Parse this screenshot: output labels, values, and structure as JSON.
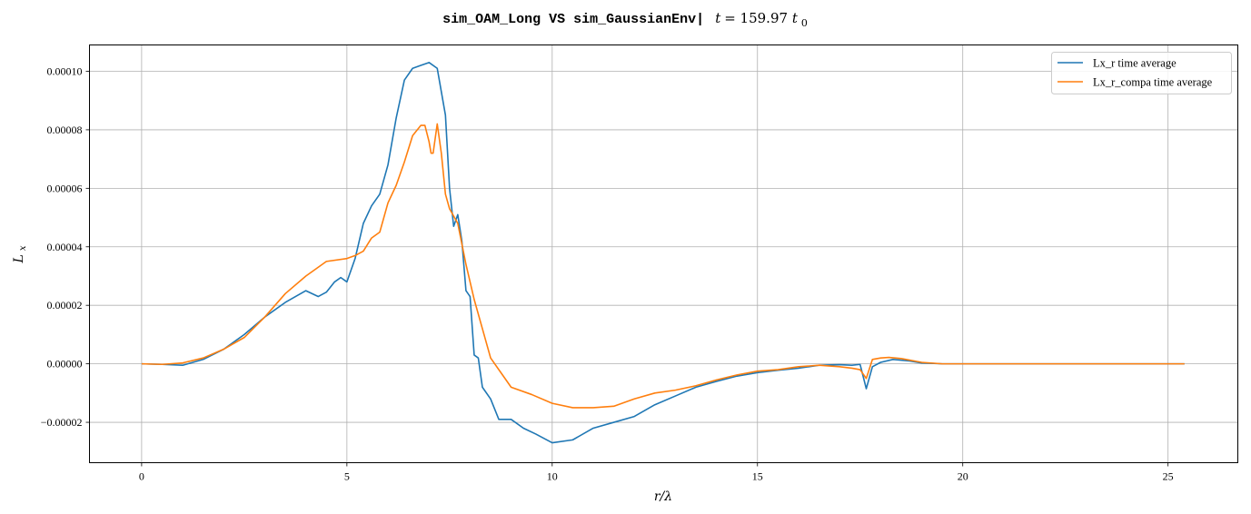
{
  "chart_data": {
    "type": "line",
    "title": {
      "code_part": "sim_OAM_Long VS sim_GaussianEnv|",
      "math_var": "t",
      "math_eq": " = 159.97 ",
      "math_unit": "t",
      "math_sub": "0"
    },
    "xlabel": "r/λ",
    "ylabel_main": "L",
    "ylabel_sub": "x",
    "xlim": [
      -1.27,
      26.7
    ],
    "ylim": [
      -3.38e-05,
      0.000109
    ],
    "xticks": [
      0,
      5,
      10,
      15,
      20,
      25
    ],
    "xtick_labels": [
      "0",
      "5",
      "10",
      "15",
      "20",
      "25"
    ],
    "yticks": [
      -2e-05,
      0,
      2e-05,
      4e-05,
      6e-05,
      8e-05,
      0.0001
    ],
    "ytick_labels": [
      "−0.00002",
      "0.00000",
      "0.00002",
      "0.00004",
      "0.00006",
      "0.00008",
      "0.00010"
    ],
    "grid": true,
    "legend_position": "top-right",
    "series": [
      {
        "name": "Lx_r time average",
        "color": "#1f77b4",
        "x": [
          0,
          0.5,
          1.0,
          1.5,
          2.0,
          2.5,
          3.0,
          3.5,
          4.0,
          4.3,
          4.5,
          4.7,
          4.85,
          5.0,
          5.2,
          5.4,
          5.6,
          5.8,
          6.0,
          6.2,
          6.4,
          6.6,
          6.8,
          7.0,
          7.2,
          7.4,
          7.5,
          7.6,
          7.7,
          7.8,
          7.9,
          8.0,
          8.1,
          8.2,
          8.3,
          8.5,
          8.7,
          9.0,
          9.3,
          9.6,
          10.0,
          10.5,
          11.0,
          11.5,
          12.0,
          12.5,
          13.0,
          13.5,
          14.0,
          14.5,
          15.0,
          15.5,
          16.0,
          16.5,
          17.0,
          17.3,
          17.5,
          17.65,
          17.8,
          18.0,
          18.3,
          18.7,
          19.0,
          19.5,
          20.0,
          21.0,
          22.0,
          23.0,
          24.0,
          25.0,
          25.4
        ],
        "y": [
          0,
          -2e-07,
          -5e-07,
          1.5e-06,
          5e-06,
          1e-05,
          1.6e-05,
          2.1e-05,
          2.5e-05,
          2.3e-05,
          2.45e-05,
          2.8e-05,
          2.95e-05,
          2.8e-05,
          3.6e-05,
          4.8e-05,
          5.4e-05,
          5.8e-05,
          6.8e-05,
          8.4e-05,
          9.7e-05,
          0.000101,
          0.000102,
          0.000103,
          0.000101,
          8.5e-05,
          6e-05,
          4.7e-05,
          5.1e-05,
          4.2e-05,
          2.5e-05,
          2.3e-05,
          3e-06,
          2e-06,
          -8e-06,
          -1.2e-05,
          -1.9e-05,
          -1.9e-05,
          -2.2e-05,
          -2.4e-05,
          -2.7e-05,
          -2.6e-05,
          -2.2e-05,
          -2e-05,
          -1.8e-05,
          -1.4e-05,
          -1.1e-05,
          -8e-06,
          -6e-06,
          -4.2e-06,
          -3e-06,
          -2.2e-06,
          -1.5e-06,
          -5e-07,
          -3e-07,
          -5e-07,
          -2e-07,
          -8.5e-06,
          -1e-06,
          5e-07,
          1.5e-06,
          1e-06,
          3e-07,
          0,
          0,
          0,
          0,
          0,
          0,
          0,
          0
        ]
      },
      {
        "name": "Lx_r_compa time average",
        "color": "#ff7f0e",
        "x": [
          0,
          0.5,
          1.0,
          1.5,
          2.0,
          2.5,
          3.0,
          3.5,
          4.0,
          4.5,
          5.0,
          5.2,
          5.4,
          5.6,
          5.8,
          6.0,
          6.2,
          6.4,
          6.6,
          6.8,
          6.9,
          7.0,
          7.05,
          7.1,
          7.2,
          7.3,
          7.4,
          7.5,
          7.7,
          7.9,
          8.1,
          8.3,
          8.5,
          8.8,
          9.0,
          9.5,
          10.0,
          10.5,
          11.0,
          11.5,
          12.0,
          12.5,
          13.0,
          13.5,
          14.0,
          14.5,
          15.0,
          15.5,
          16.0,
          16.5,
          17.0,
          17.3,
          17.5,
          17.65,
          17.8,
          18.0,
          18.2,
          18.5,
          19.0,
          19.5,
          20.0,
          21.0,
          22.0,
          23.0,
          24.0,
          25.0,
          25.4
        ],
        "y": [
          0,
          -2e-07,
          3e-07,
          2e-06,
          5e-06,
          9e-06,
          1.6e-05,
          2.4e-05,
          3e-05,
          3.5e-05,
          3.6e-05,
          3.7e-05,
          3.85e-05,
          4.3e-05,
          4.5e-05,
          5.5e-05,
          6.1e-05,
          6.9e-05,
          7.8e-05,
          8.15e-05,
          8.15e-05,
          7.6e-05,
          7.2e-05,
          7.2e-05,
          8.2e-05,
          7.2e-05,
          5.8e-05,
          5.3e-05,
          4.8e-05,
          3.4e-05,
          2.2e-05,
          1.2e-05,
          2e-06,
          -4e-06,
          -8e-06,
          -1.05e-05,
          -1.35e-05,
          -1.5e-05,
          -1.5e-05,
          -1.45e-05,
          -1.2e-05,
          -1e-05,
          -9e-06,
          -7.5e-06,
          -5.5e-06,
          -3.8e-06,
          -2.5e-06,
          -2e-06,
          -1e-06,
          -5e-07,
          -1e-06,
          -1.5e-06,
          -2e-06,
          -5e-06,
          1.5e-06,
          2e-06,
          2.2e-06,
          1.8e-06,
          5e-07,
          0,
          0,
          0,
          0,
          0,
          0,
          0,
          0
        ]
      }
    ]
  }
}
